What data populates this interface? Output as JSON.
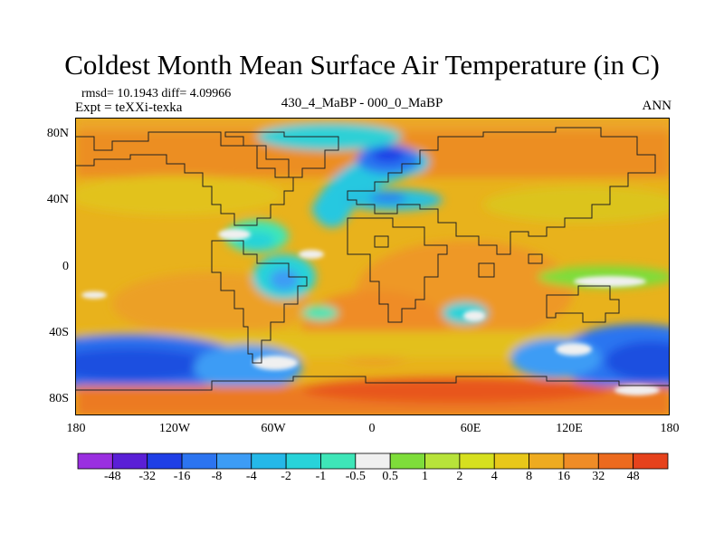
{
  "title": "Coldest Month Mean Surface Air Temperature (in C)",
  "stats": "rmsd= 10.1943 diff= 4.09966",
  "expt": "Expt = teXXi-texka",
  "difference_label": "430_4_MaBP - 000_0_MaBP",
  "season": "ANN",
  "map": {
    "projection": "cylindrical-equidistant",
    "lat_ticks": [
      "80N",
      "40N",
      "0",
      "40S",
      "80S"
    ],
    "lon_ticks": [
      "180",
      "120W",
      "60W",
      "0",
      "60E",
      "120E",
      "180"
    ]
  },
  "colorbar": {
    "colors": [
      "#9a2fe0",
      "#5a1fd6",
      "#1f3fe6",
      "#2c74f0",
      "#3c9cf5",
      "#25b8e8",
      "#28d3d9",
      "#3ee6b8",
      "#f0f0f0",
      "#7edd3a",
      "#b7e33a",
      "#d6e01f",
      "#e8c81a",
      "#eeab20",
      "#ef8c26",
      "#ec6a1e",
      "#e6421c"
    ],
    "labels": [
      "-48",
      "-32",
      "-16",
      "-8",
      "-4",
      "-2",
      "-1",
      "-0.5",
      "0.5",
      "1",
      "2",
      "4",
      "8",
      "16",
      "32",
      "48"
    ]
  }
}
